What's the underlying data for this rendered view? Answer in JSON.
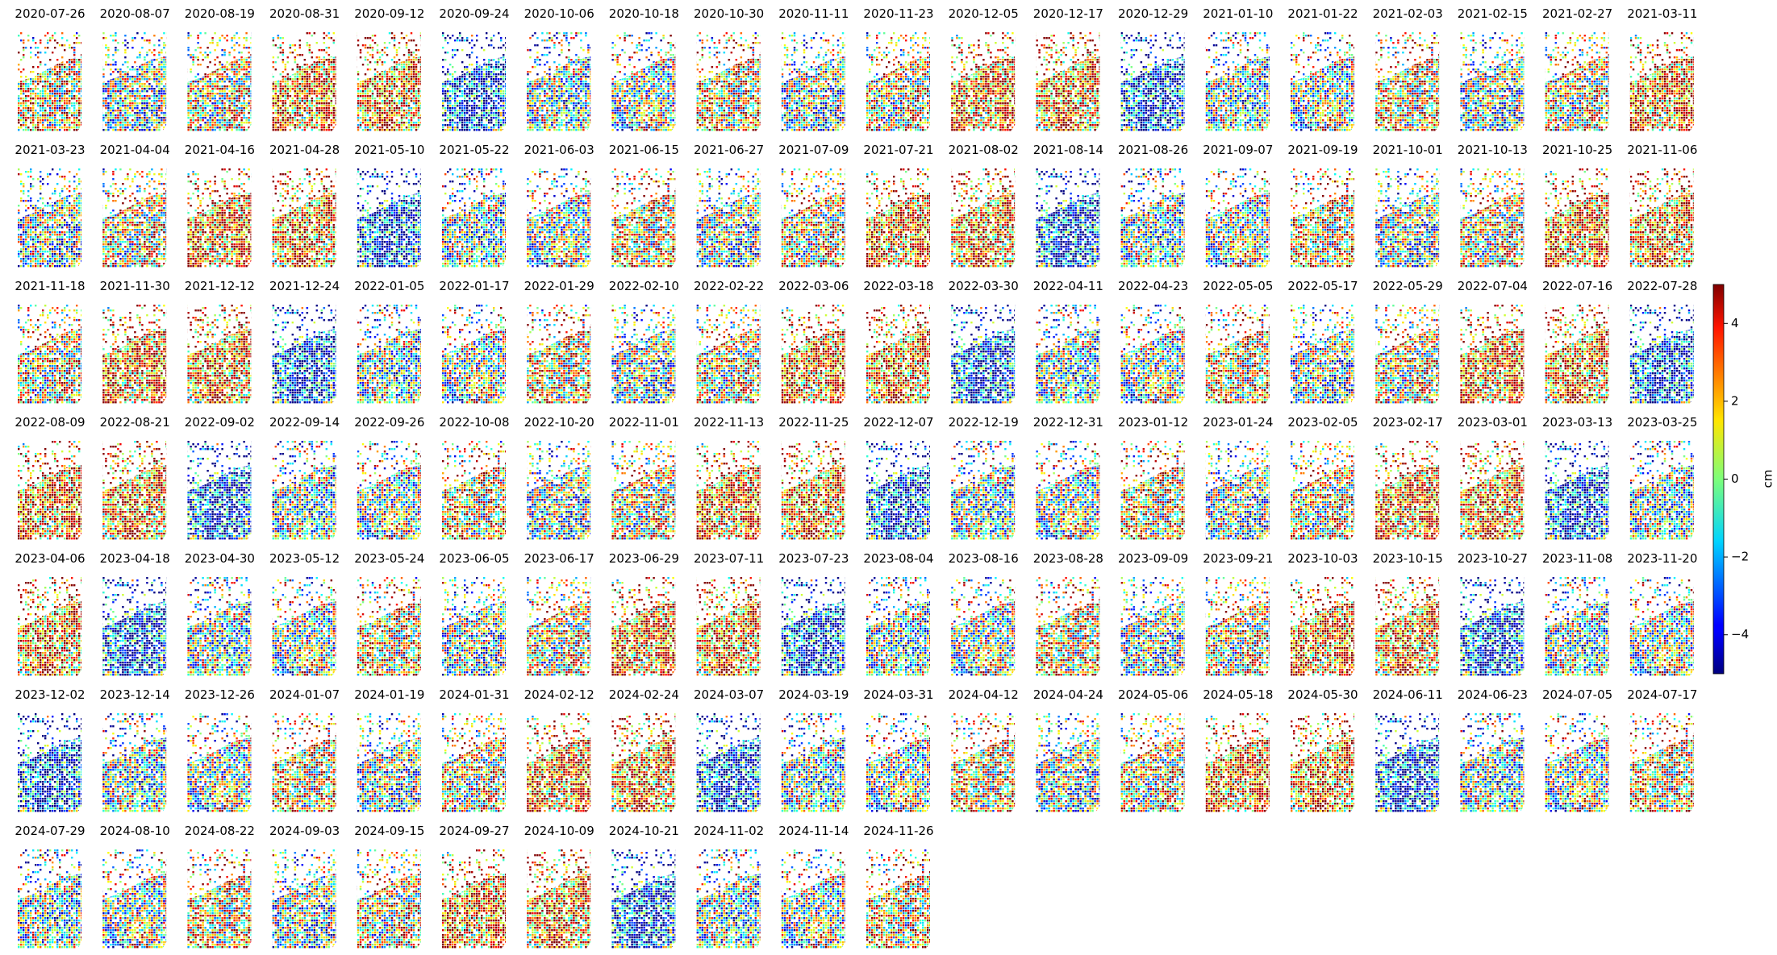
{
  "chart_data": {
    "type": "map-grid",
    "titles": [
      "2020-07-26",
      "2020-08-07",
      "2020-08-19",
      "2020-08-31",
      "2020-09-12",
      "2020-09-24",
      "2020-10-06",
      "2020-10-18",
      "2020-10-30",
      "2020-11-11",
      "2020-11-23",
      "2020-12-05",
      "2020-12-17",
      "2020-12-29",
      "2021-01-10",
      "2021-01-22",
      "2021-02-03",
      "2021-02-15",
      "2021-02-27",
      "2021-03-11",
      "2021-03-23",
      "2021-04-04",
      "2021-04-16",
      "2021-04-28",
      "2021-05-10",
      "2021-05-22",
      "2021-06-03",
      "2021-06-15",
      "2021-06-27",
      "2021-07-09",
      "2021-07-21",
      "2021-08-02",
      "2021-08-14",
      "2021-08-26",
      "2021-09-07",
      "2021-09-19",
      "2021-10-01",
      "2021-10-13",
      "2021-10-25",
      "2021-11-06",
      "2021-11-18",
      "2021-11-30",
      "2021-12-12",
      "2021-12-24",
      "2022-01-05",
      "2022-01-17",
      "2022-01-29",
      "2022-02-10",
      "2022-02-22",
      "2022-03-06",
      "2022-03-18",
      "2022-03-30",
      "2022-04-11",
      "2022-04-23",
      "2022-05-05",
      "2022-05-17",
      "2022-05-29",
      "2022-07-04",
      "2022-07-16",
      "2022-07-28",
      "2022-08-09",
      "2022-08-21",
      "2022-09-02",
      "2022-09-14",
      "2022-09-26",
      "2022-10-08",
      "2022-10-20",
      "2022-11-01",
      "2022-11-13",
      "2022-11-25",
      "2022-12-07",
      "2022-12-19",
      "2022-12-31",
      "2023-01-12",
      "2023-01-24",
      "2023-02-05",
      "2023-02-17",
      "2023-03-01",
      "2023-03-13",
      "2023-03-25",
      "2023-04-06",
      "2023-04-18",
      "2023-04-30",
      "2023-05-12",
      "2023-05-24",
      "2023-06-05",
      "2023-06-17",
      "2023-06-29",
      "2023-07-11",
      "2023-07-23",
      "2023-08-04",
      "2023-08-16",
      "2023-08-28",
      "2023-09-09",
      "2023-09-21",
      "2023-10-03",
      "2023-10-15",
      "2023-10-27",
      "2023-11-08",
      "2023-11-20",
      "2023-12-02",
      "2023-12-14",
      "2023-12-26",
      "2024-01-07",
      "2024-01-19",
      "2024-01-31",
      "2024-02-12",
      "2024-02-24",
      "2024-03-07",
      "2024-03-19",
      "2024-03-31",
      "2024-04-12",
      "2024-04-24",
      "2024-05-06",
      "2024-05-18",
      "2024-05-30",
      "2024-06-11",
      "2024-06-23",
      "2024-07-05",
      "2024-07-17",
      "2024-07-29",
      "2024-08-10",
      "2024-08-22",
      "2024-09-03",
      "2024-09-15",
      "2024-09-27",
      "2024-10-09",
      "2024-10-21",
      "2024-11-02",
      "2024-11-14",
      "2024-11-26"
    ],
    "colorbar_label": "cm",
    "clim": [
      -5,
      5
    ],
    "cticks": [
      {
        "value": -4,
        "label": "−4"
      },
      {
        "value": -2,
        "label": "−2"
      },
      0,
      2,
      4
    ]
  }
}
